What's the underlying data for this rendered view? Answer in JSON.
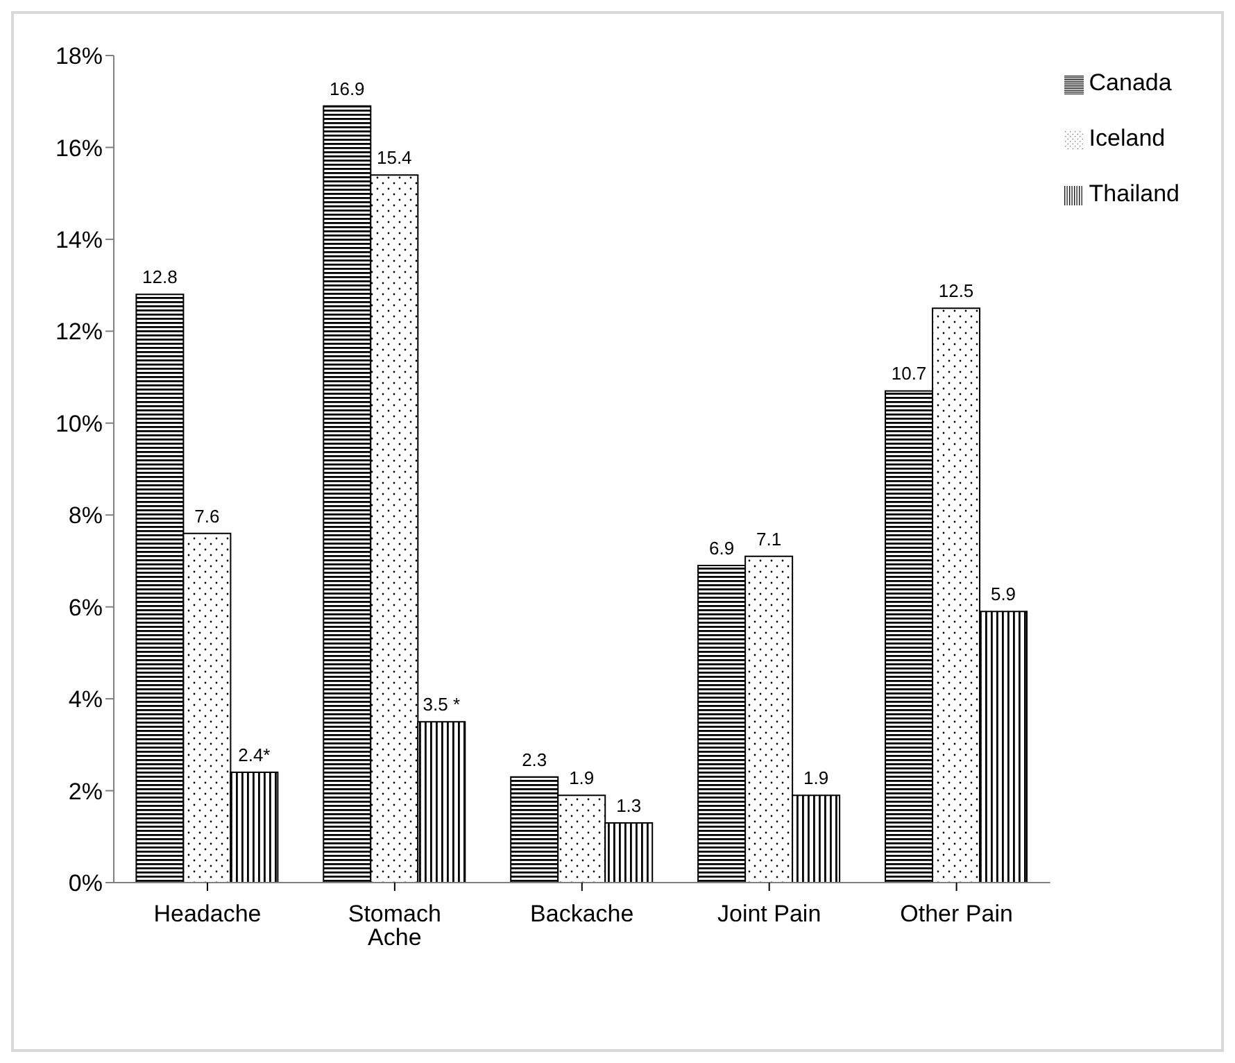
{
  "chart_data": {
    "type": "bar",
    "categories": [
      "Headache",
      "Stomach Ache",
      "Backache",
      "Joint Pain",
      "Other Pain"
    ],
    "series": [
      {
        "name": "Canada",
        "color": "#000000",
        "values": [
          12.8,
          16.9,
          2.3,
          6.9,
          10.7
        ],
        "value_labels": [
          "12.8",
          "16.9",
          "2.3",
          "6.9",
          "10.7"
        ]
      },
      {
        "name": "Iceland",
        "color": "#000000",
        "values": [
          7.6,
          15.4,
          1.9,
          7.1,
          12.5
        ],
        "value_labels": [
          "7.6",
          "15.4",
          "1.9",
          "7.1",
          "12.5"
        ]
      },
      {
        "name": "Thailand",
        "color": "#000000",
        "values": [
          2.4,
          3.5,
          1.3,
          1.9,
          5.9
        ],
        "value_labels": [
          "2.4*",
          "3.5 *",
          "1.3",
          "1.9",
          "5.9"
        ]
      }
    ],
    "ylim": [
      0,
      18
    ],
    "yticks": [
      {
        "value": 0,
        "label": "0%"
      },
      {
        "value": 2,
        "label": "2%"
      },
      {
        "value": 4,
        "label": "4%"
      },
      {
        "value": 6,
        "label": "6%"
      },
      {
        "value": 8,
        "label": "8%"
      },
      {
        "value": 10,
        "label": "10%"
      },
      {
        "value": 12,
        "label": "12%"
      },
      {
        "value": 14,
        "label": "14%"
      },
      {
        "value": 16,
        "label": "16%"
      },
      {
        "value": 18,
        "label": "18%"
      }
    ],
    "legend": "top right",
    "grid": false
  }
}
